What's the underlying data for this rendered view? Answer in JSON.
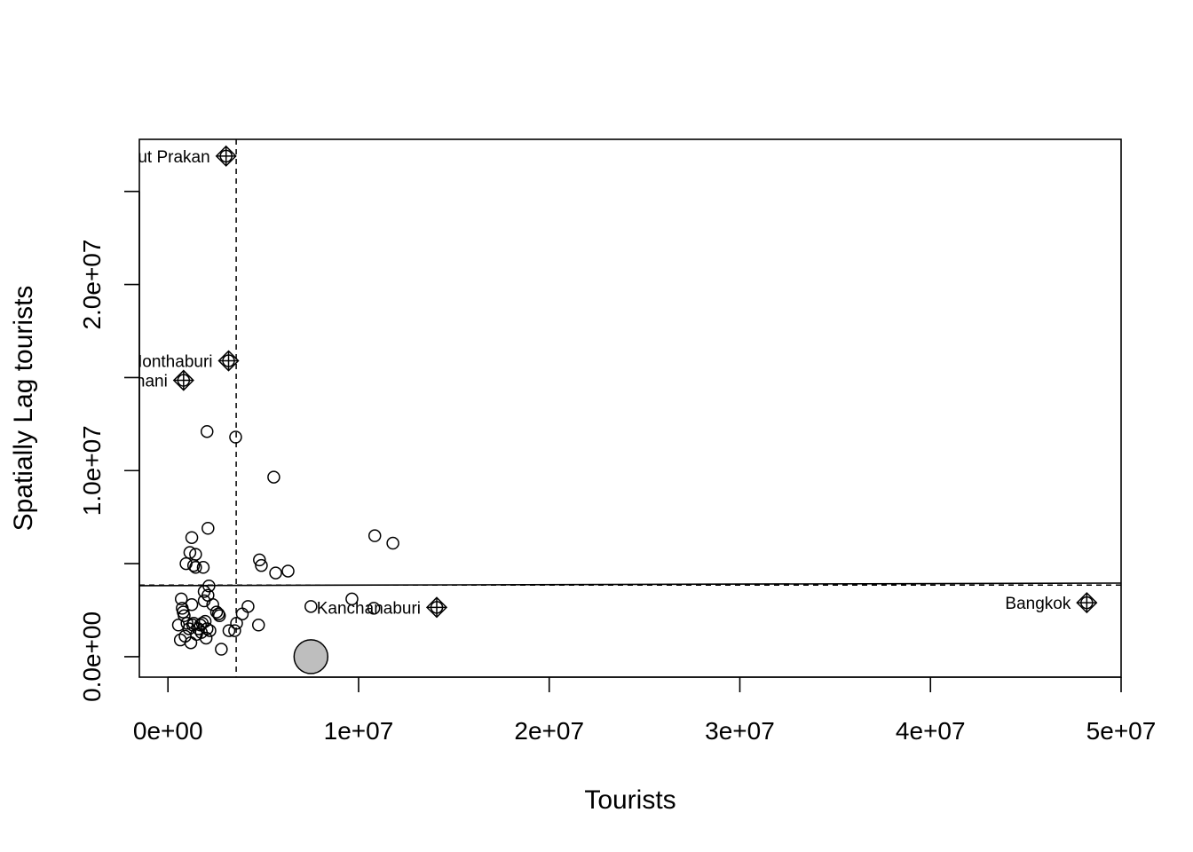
{
  "chart_data": {
    "type": "scatter",
    "title": "",
    "xlabel": "Tourists",
    "ylabel": "Spatially Lag tourists",
    "xlim": [
      -1500000,
      50000000
    ],
    "ylim": [
      -1100000,
      27800000
    ],
    "x_ticks": [
      {
        "value": 0,
        "label": "0e+00"
      },
      {
        "value": 10000000,
        "label": "1e+07"
      },
      {
        "value": 20000000,
        "label": "2e+07"
      },
      {
        "value": 30000000,
        "label": "3e+07"
      },
      {
        "value": 40000000,
        "label": "4e+07"
      },
      {
        "value": 50000000,
        "label": "5e+07"
      }
    ],
    "y_ticks": [
      {
        "value": 0,
        "label": "0.0e+00"
      },
      {
        "value": 5000000,
        "label": ""
      },
      {
        "value": 10000000,
        "label": "1.0e+07"
      },
      {
        "value": 15000000,
        "label": ""
      },
      {
        "value": 20000000,
        "label": "2.0e+07"
      },
      {
        "value": 25000000,
        "label": ""
      }
    ],
    "mean_x": 3580000,
    "mean_y": 3850000,
    "regression_line": {
      "intercept": 3820000,
      "slope": 0.0027
    },
    "points": [
      {
        "x": 550000,
        "y": 1700000
      },
      {
        "x": 650000,
        "y": 900000
      },
      {
        "x": 700000,
        "y": 3100000
      },
      {
        "x": 750000,
        "y": 2600000
      },
      {
        "x": 800000,
        "y": 2400000
      },
      {
        "x": 850000,
        "y": 2200000
      },
      {
        "x": 900000,
        "y": 1100000
      },
      {
        "x": 950000,
        "y": 5000000
      },
      {
        "x": 1000000,
        "y": 1800000
      },
      {
        "x": 1100000,
        "y": 1500000
      },
      {
        "x": 1150000,
        "y": 5600000
      },
      {
        "x": 1200000,
        "y": 750000
      },
      {
        "x": 1250000,
        "y": 2800000
      },
      {
        "x": 1300000,
        "y": 1700000
      },
      {
        "x": 1350000,
        "y": 1800000
      },
      {
        "x": 1250000,
        "y": 6400000
      },
      {
        "x": 1350000,
        "y": 4900000
      },
      {
        "x": 1450000,
        "y": 5500000
      },
      {
        "x": 1450000,
        "y": 4800000
      },
      {
        "x": 1500000,
        "y": 1200000
      },
      {
        "x": 1600000,
        "y": 1500000
      },
      {
        "x": 1700000,
        "y": 1700000
      },
      {
        "x": 1750000,
        "y": 1300000
      },
      {
        "x": 1800000,
        "y": 1800000
      },
      {
        "x": 1850000,
        "y": 4800000
      },
      {
        "x": 1900000,
        "y": 3500000
      },
      {
        "x": 1900000,
        "y": 3000000
      },
      {
        "x": 1950000,
        "y": 1900000
      },
      {
        "x": 2000000,
        "y": 1000000
      },
      {
        "x": 2050000,
        "y": 1500000
      },
      {
        "x": 2050000,
        "y": 12100000
      },
      {
        "x": 2100000,
        "y": 6900000
      },
      {
        "x": 2100000,
        "y": 3300000
      },
      {
        "x": 2150000,
        "y": 3800000
      },
      {
        "x": 2200000,
        "y": 1400000
      },
      {
        "x": 2350000,
        "y": 2800000
      },
      {
        "x": 2550000,
        "y": 2400000
      },
      {
        "x": 2650000,
        "y": 2300000
      },
      {
        "x": 2700000,
        "y": 2200000
      },
      {
        "x": 2800000,
        "y": 400000
      },
      {
        "x": 3200000,
        "y": 1400000
      },
      {
        "x": 3500000,
        "y": 1400000
      },
      {
        "x": 3600000,
        "y": 1800000
      },
      {
        "x": 3550000,
        "y": 11800000
      },
      {
        "x": 3900000,
        "y": 2300000
      },
      {
        "x": 4200000,
        "y": 2700000
      },
      {
        "x": 4750000,
        "y": 1700000
      },
      {
        "x": 4800000,
        "y": 5200000
      },
      {
        "x": 4900000,
        "y": 4900000
      },
      {
        "x": 5550000,
        "y": 9650000
      },
      {
        "x": 5650000,
        "y": 4500000
      },
      {
        "x": 6300000,
        "y": 4600000
      },
      {
        "x": 7500000,
        "y": 2700000
      },
      {
        "x": 9650000,
        "y": 3100000
      },
      {
        "x": 10800000,
        "y": 2600000
      },
      {
        "x": 10850000,
        "y": 6500000
      },
      {
        "x": 11800000,
        "y": 6100000
      }
    ],
    "influential_points": [
      {
        "x": 3050000,
        "y": 26900000,
        "label": "Samut Prakan"
      },
      {
        "x": 3180000,
        "y": 15900000,
        "label": "Nonthaburi"
      },
      {
        "x": 820000,
        "y": 14850000,
        "label": "Pathum Thani"
      },
      {
        "x": 14100000,
        "y": 2650000,
        "label": "Kanchanaburi"
      },
      {
        "x": 48200000,
        "y": 2900000,
        "label": "Bangkok"
      }
    ],
    "highlight_point": {
      "x": 7500000,
      "y": 0,
      "fill": "#bebebe"
    },
    "grid": false,
    "legend": "none"
  }
}
